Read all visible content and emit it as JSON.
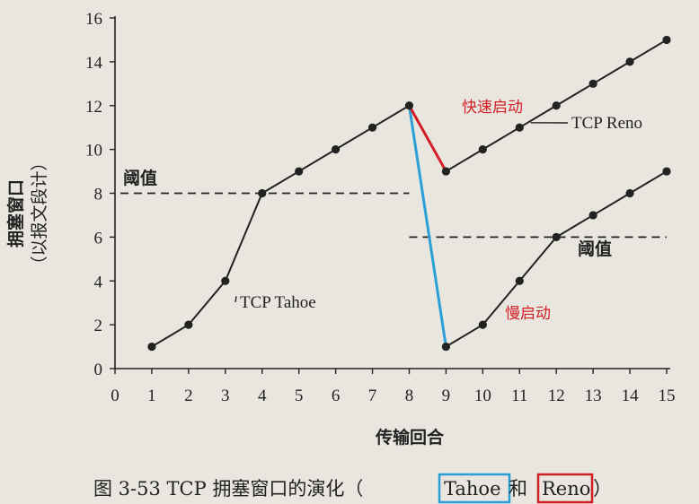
{
  "chart_data": {
    "type": "line",
    "xlabel": "传输回合",
    "ylabel": "拥塞窗口",
    "ylabel_sub": "（以报文段计）",
    "x": [
      1,
      2,
      3,
      4,
      5,
      6,
      7,
      8,
      9,
      10,
      11,
      12,
      13,
      14,
      15
    ],
    "xlim": [
      0,
      15
    ],
    "ylim": [
      0,
      16
    ],
    "x_ticks": [
      0,
      1,
      2,
      3,
      4,
      5,
      6,
      7,
      8,
      9,
      10,
      11,
      12,
      13,
      14,
      15
    ],
    "y_ticks": [
      0,
      2,
      4,
      6,
      8,
      10,
      12,
      14,
      16
    ],
    "grid": false,
    "series": [
      {
        "name": "TCP Tahoe",
        "x": [
          1,
          2,
          3,
          4,
          5,
          6,
          7,
          8,
          9,
          10,
          11,
          12,
          13,
          14,
          15
        ],
        "values": [
          1,
          2,
          4,
          8,
          9,
          10,
          11,
          12,
          1,
          2,
          4,
          6,
          7,
          8,
          9
        ],
        "color": "#222222"
      },
      {
        "name": "TCP Reno",
        "x": [
          9,
          10,
          11,
          12,
          13,
          14,
          15
        ],
        "values": [
          9,
          10,
          11,
          12,
          13,
          14,
          15
        ],
        "color": "#222222"
      }
    ],
    "thresholds": [
      {
        "label": "阈值",
        "y": 8,
        "x_range": [
          0,
          8
        ]
      },
      {
        "label": "阈值",
        "y": 6,
        "x_range": [
          8,
          15
        ]
      }
    ],
    "highlight_lines": [
      {
        "label": "Tahoe",
        "from": [
          8,
          12
        ],
        "to": [
          9,
          1
        ],
        "color": "#2a9fd6"
      },
      {
        "label": "Reno",
        "from": [
          8,
          12
        ],
        "to": [
          9,
          9
        ],
        "color": "#d21f26"
      }
    ],
    "annotations": {
      "fast_recovery": "快速启动",
      "slow_start": "慢启动",
      "tahoe_label": "TCP Tahoe",
      "reno_label": "TCP Reno",
      "threshold_label": "阈值"
    },
    "caption": {
      "prefix": "图 3-53 TCP 拥塞窗口的演化（",
      "tahoe": "Tahoe",
      "mid": " 和 ",
      "reno": "Reno",
      "suffix": "）"
    },
    "colors": {
      "tahoe_highlight": "#2a9fd6",
      "reno_highlight": "#d21f26",
      "ink": "#222222"
    }
  }
}
